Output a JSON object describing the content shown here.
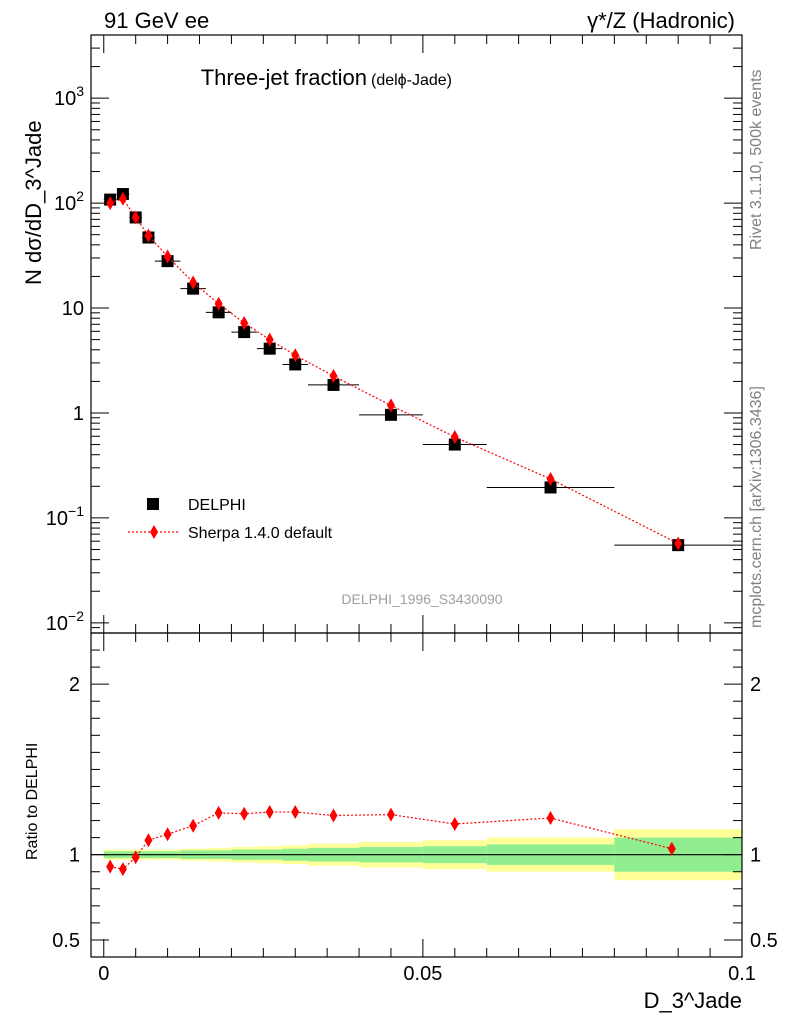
{
  "header": {
    "left_label": "91 GeV ee",
    "right_label": "γ*/Z (Hadronic)"
  },
  "side_labels": {
    "rivet": "Rivet 3.1.10,  500k events",
    "mcplots": "mcplots.cern.ch [arXiv:1306.3436]"
  },
  "chart_data": [
    {
      "type": "scatter",
      "panel": "main",
      "title": "Three-jet fraction",
      "title_suffix": "(delϕ-Jade)",
      "ylabel": "N dσ/dD_3^Jade",
      "yscale": "log",
      "ylim": [
        0.008,
        4000
      ],
      "xlim": [
        -0.002,
        0.1
      ],
      "watermark": "DELPHI_1996_S3430090",
      "y_ticks": [
        {
          "v": 0.01,
          "base": "10",
          "exp": "−2"
        },
        {
          "v": 0.1,
          "base": "10",
          "exp": "−1"
        },
        {
          "v": 1,
          "base": "1",
          "exp": ""
        },
        {
          "v": 10,
          "base": "10",
          "exp": ""
        },
        {
          "v": 100,
          "base": "10",
          "exp": "2"
        },
        {
          "v": 1000,
          "base": "10",
          "exp": "3"
        }
      ],
      "legend": [
        "DELPHI",
        "Sherpa 1.4.0 default"
      ],
      "series": [
        {
          "name": "DELPHI",
          "marker": "square",
          "color": "#000000",
          "x": [
            0.001,
            0.003,
            0.005,
            0.007,
            0.01,
            0.014,
            0.018,
            0.022,
            0.026,
            0.03,
            0.036,
            0.045,
            0.055,
            0.07,
            0.09
          ],
          "y": [
            108,
            122,
            73,
            47,
            28,
            15.3,
            9.1,
            5.9,
            4.1,
            2.9,
            1.85,
            0.96,
            0.5,
            0.195,
            0.055
          ],
          "x_half_width": [
            0.001,
            0.001,
            0.001,
            0.001,
            0.002,
            0.002,
            0.002,
            0.002,
            0.002,
            0.002,
            0.004,
            0.005,
            0.005,
            0.01,
            0.01
          ]
        },
        {
          "name": "Sherpa 1.4.0 default",
          "marker": "diamond",
          "color": "#ff0000",
          "x": [
            0.001,
            0.003,
            0.005,
            0.007,
            0.01,
            0.014,
            0.018,
            0.022,
            0.026,
            0.03,
            0.036,
            0.045,
            0.055,
            0.07,
            0.09
          ],
          "y": [
            100,
            110,
            73,
            49,
            31,
            17.5,
            11,
            7.2,
            5.0,
            3.55,
            2.25,
            1.18,
            0.59,
            0.235,
            0.057
          ]
        }
      ]
    },
    {
      "type": "scatter",
      "panel": "ratio",
      "ylabel": "Ratio to DELPHI",
      "xlabel": "D_3^Jade",
      "ylim": [
        0.4,
        2.3
      ],
      "y_ticks": [
        0.5,
        1,
        2
      ],
      "y_tick_labels": [
        "0.5",
        "1",
        "2"
      ],
      "x_ticks": [
        0,
        0.05,
        0.1
      ],
      "x_tick_labels": [
        "0",
        "0.05",
        "0.1"
      ],
      "uncertainty_bands": {
        "edges": [
          0,
          0.002,
          0.004,
          0.006,
          0.008,
          0.012,
          0.016,
          0.02,
          0.024,
          0.028,
          0.032,
          0.04,
          0.05,
          0.06,
          0.08,
          0.1
        ],
        "inner_color": "#90ee90",
        "outer_color": "#ffff99",
        "inner": [
          0.02,
          0.02,
          0.02,
          0.02,
          0.02,
          0.025,
          0.025,
          0.03,
          0.03,
          0.035,
          0.04,
          0.045,
          0.05,
          0.06,
          0.1
        ],
        "outer": [
          0.03,
          0.03,
          0.03,
          0.03,
          0.03,
          0.035,
          0.04,
          0.045,
          0.05,
          0.055,
          0.065,
          0.075,
          0.085,
          0.1,
          0.15
        ]
      },
      "series": [
        {
          "name": "Sherpa 1.4.0 default",
          "color": "#ff0000",
          "x": [
            0.001,
            0.003,
            0.005,
            0.007,
            0.01,
            0.014,
            0.018,
            0.022,
            0.026,
            0.03,
            0.036,
            0.045,
            0.055,
            0.07,
            0.089
          ],
          "y": [
            0.93,
            0.915,
            0.985,
            1.085,
            1.12,
            1.17,
            1.245,
            1.24,
            1.25,
            1.25,
            1.23,
            1.235,
            1.18,
            1.215,
            1.035
          ],
          "yerr": [
            0,
            0,
            0,
            0,
            0,
            0,
            0,
            0,
            0,
            0,
            0,
            0,
            0,
            0,
            0.03
          ]
        }
      ]
    }
  ]
}
